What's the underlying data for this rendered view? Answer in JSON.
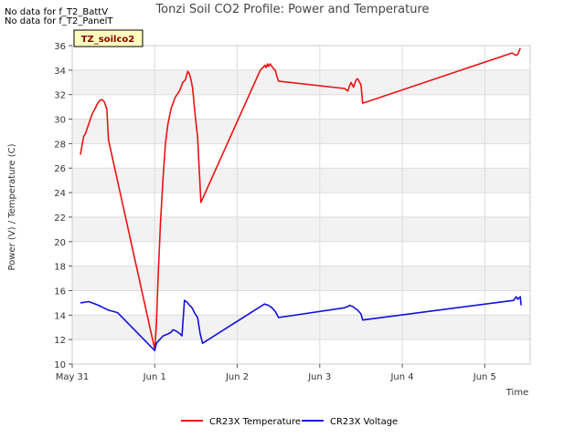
{
  "no_data_messages": [
    "No data for f_T2_BattV",
    "No data for f_T2_PanelT"
  ],
  "chart_data": {
    "type": "line",
    "title": "Tonzi Soil CO2 Profile: Power and Temperature",
    "site_label": "TZ_soilco2",
    "xlabel": "Time",
    "ylabel": "Power (V) / Temperature (C)",
    "xlim": [
      0,
      5.55
    ],
    "ylim": [
      10,
      36
    ],
    "x_tick_values": [
      0,
      1,
      2,
      3,
      4,
      5
    ],
    "x_tick_labels": [
      "May 31",
      "Jun 1",
      "Jun 2",
      "Jun 3",
      "Jun 4",
      "Jun 5"
    ],
    "y_ticks": [
      10,
      12,
      14,
      16,
      18,
      20,
      22,
      24,
      26,
      28,
      30,
      32,
      34,
      36
    ],
    "grid": true,
    "legend_position": "bottom",
    "series": [
      {
        "name": "CR23X Temperature",
        "color": "#ee1111",
        "x": [
          0.1,
          0.12,
          0.14,
          0.16,
          0.2,
          0.24,
          0.28,
          0.3,
          0.33,
          0.36,
          0.39,
          0.42,
          0.44,
          1.0,
          1.02,
          1.04,
          1.07,
          1.1,
          1.13,
          1.16,
          1.2,
          1.25,
          1.3,
          1.34,
          1.37,
          1.4,
          1.42,
          1.44,
          1.46,
          1.48,
          1.52,
          1.56,
          1.58,
          2.28,
          2.34,
          2.35,
          2.37,
          2.38,
          2.39,
          2.4,
          2.42,
          2.44,
          2.46,
          2.48,
          2.5,
          3.3,
          3.34,
          3.36,
          3.38,
          3.41,
          3.44,
          3.46,
          3.5,
          3.52,
          5.33,
          5.38,
          5.4,
          5.43
        ],
        "values": [
          27.1,
          27.9,
          28.6,
          28.8,
          29.6,
          30.4,
          30.9,
          31.2,
          31.5,
          31.6,
          31.4,
          30.8,
          28.3,
          11.2,
          13.2,
          17.0,
          21.6,
          25.1,
          28.0,
          29.6,
          30.9,
          31.8,
          32.3,
          33.0,
          33.2,
          33.9,
          33.7,
          33.2,
          32.5,
          31.0,
          28.5,
          23.2,
          23.5,
          34.0,
          34.4,
          34.2,
          34.5,
          34.3,
          34.4,
          34.5,
          34.3,
          34.1,
          34.0,
          33.5,
          33.1,
          32.5,
          32.3,
          32.7,
          33.0,
          32.6,
          33.2,
          33.3,
          32.8,
          31.3,
          35.4,
          35.2,
          35.3,
          35.8
        ]
      },
      {
        "name": "CR23X Voltage",
        "color": "#1111dd",
        "x": [
          0.1,
          0.2,
          0.24,
          0.28,
          0.32,
          0.35,
          0.38,
          0.44,
          0.55,
          1.0,
          1.02,
          1.06,
          1.1,
          1.14,
          1.2,
          1.22,
          1.26,
          1.3,
          1.33,
          1.36,
          1.38,
          1.4,
          1.42,
          1.44,
          1.46,
          1.48,
          1.5,
          1.52,
          1.55,
          1.58,
          2.33,
          2.38,
          2.42,
          2.46,
          2.5,
          3.3,
          3.34,
          3.36,
          3.4,
          3.44,
          3.46,
          3.5,
          3.52,
          5.35,
          5.38,
          5.4,
          5.43,
          5.44
        ],
        "values": [
          15.0,
          15.1,
          15.0,
          14.9,
          14.8,
          14.7,
          14.6,
          14.4,
          14.2,
          11.1,
          11.7,
          12.0,
          12.3,
          12.4,
          12.6,
          12.8,
          12.7,
          12.5,
          12.3,
          15.2,
          15.1,
          15.0,
          14.8,
          14.7,
          14.5,
          14.2,
          14.0,
          13.8,
          12.5,
          11.7,
          14.9,
          14.8,
          14.6,
          14.3,
          13.8,
          14.6,
          14.7,
          14.8,
          14.7,
          14.5,
          14.4,
          14.1,
          13.6,
          15.2,
          15.5,
          15.3,
          15.5,
          14.8
        ]
      }
    ]
  }
}
